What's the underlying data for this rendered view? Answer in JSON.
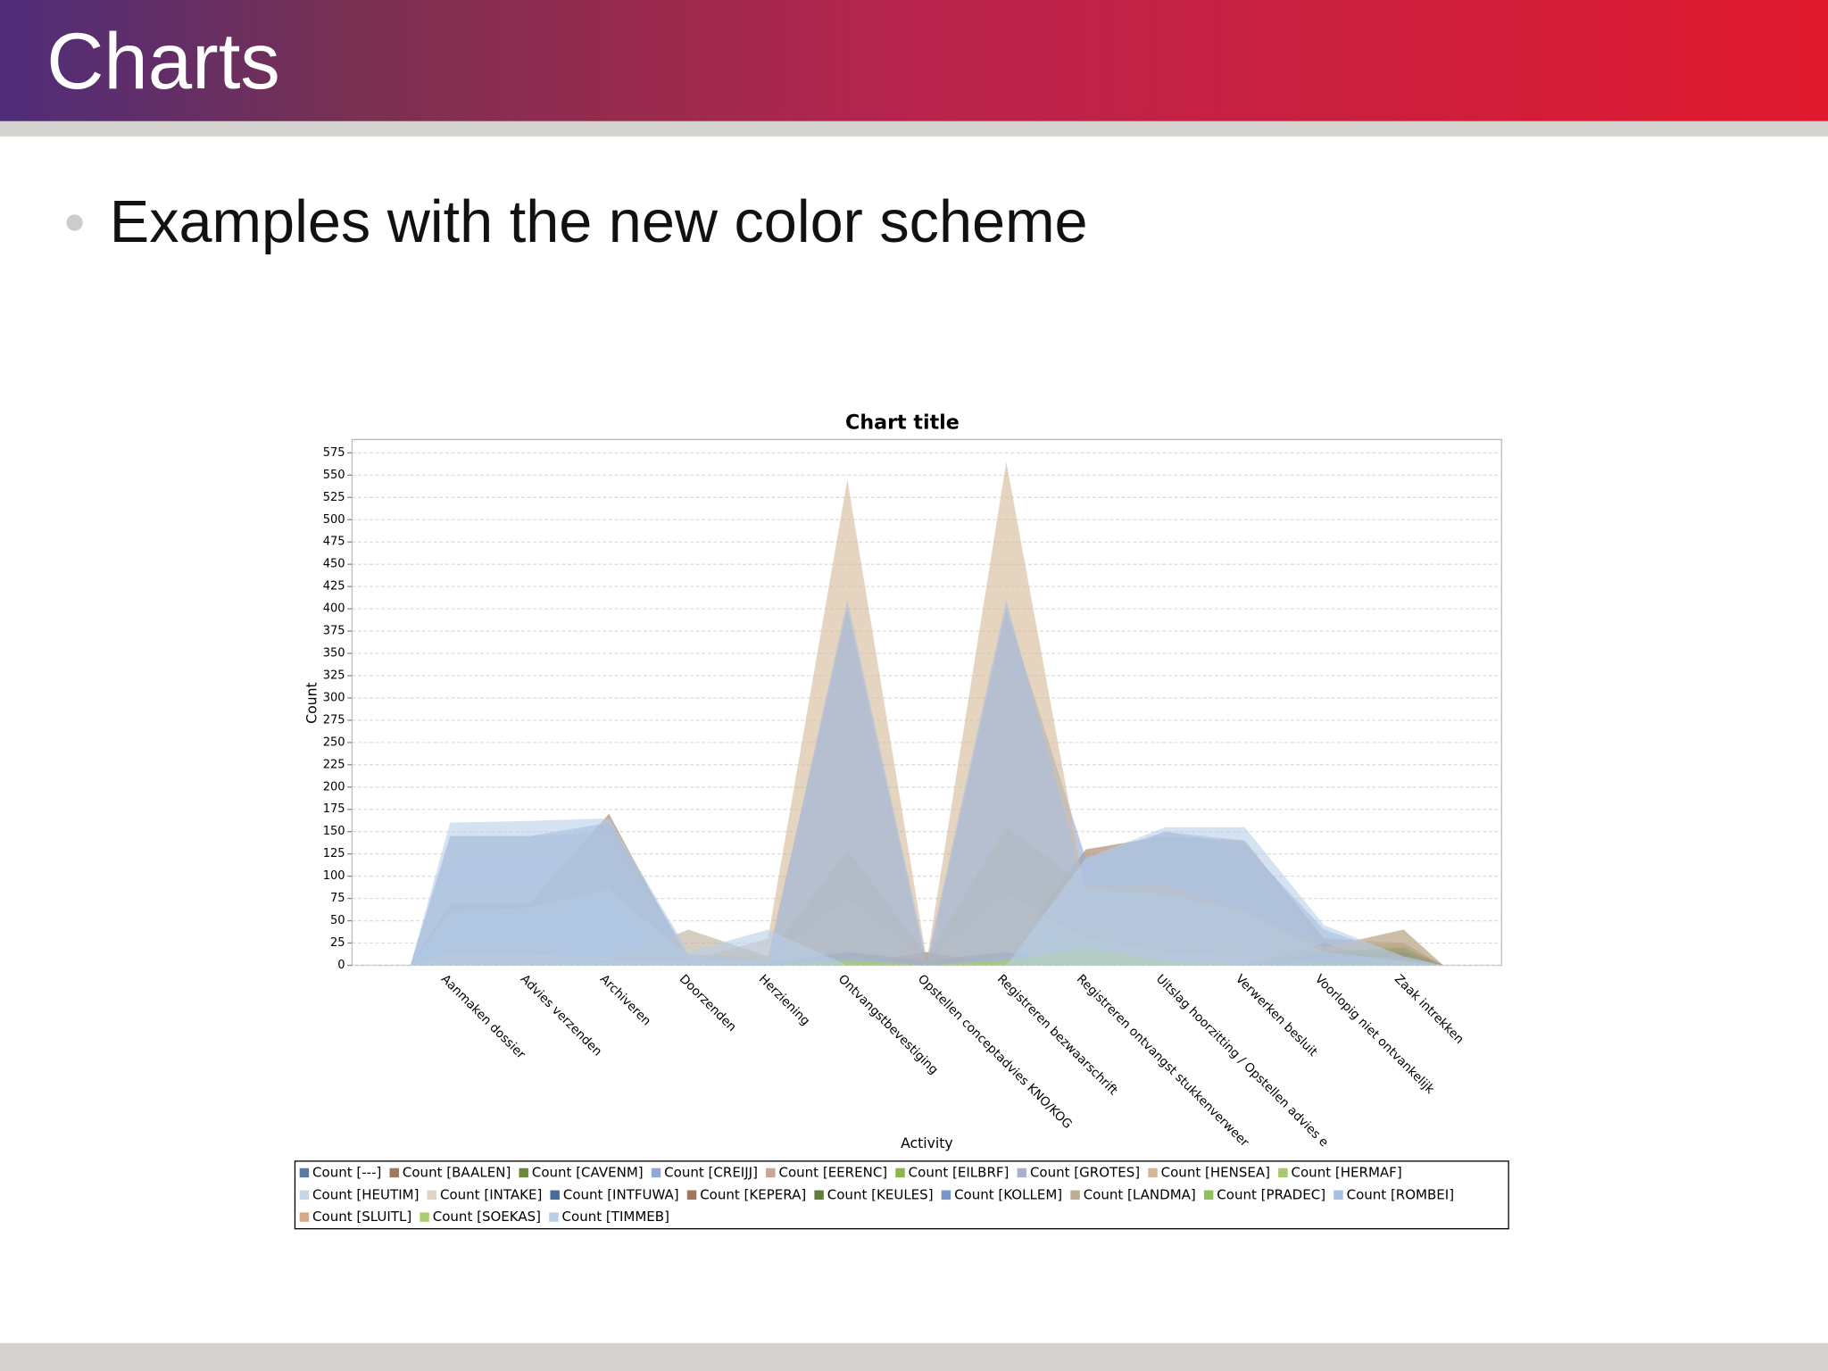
{
  "slide": {
    "title": "Charts",
    "bullet": "Examples with the new color scheme"
  },
  "chart_data": {
    "type": "area",
    "title": "Chart title",
    "x_label": "Activity",
    "y_label": "Count",
    "categories": [
      "Aanmaken dossier",
      "Advies verzenden",
      "Archiveren",
      "Doorzenden",
      "Herziening",
      "Ontvangstbevestiging",
      "Opstellen conceptadvies KNO/KOG",
      "Registreren bezwaarschrift",
      "Registreren ontvangst stukkenverweer",
      "Uitslag hoorzitting / Opstellen advies e",
      "Verwerken besluit",
      "Voorlopig niet ontvankelijk",
      "Zaak intrekken"
    ],
    "series": [
      {
        "name": "Count [---]",
        "color": "#5a7aa0",
        "values": [
          0,
          0,
          0,
          0,
          5,
          20,
          5,
          20,
          0,
          0,
          0,
          10,
          5
        ]
      },
      {
        "name": "Count [BAALEN]",
        "color": "#9c7a5e",
        "values": [
          70,
          70,
          170,
          5,
          5,
          10,
          10,
          10,
          130,
          145,
          140,
          30,
          25
        ]
      },
      {
        "name": "Count [CAVENM]",
        "color": "#6a8a3a",
        "values": [
          0,
          0,
          0,
          0,
          0,
          5,
          0,
          5,
          0,
          0,
          0,
          20,
          25
        ]
      },
      {
        "name": "Count [CREIJJ]",
        "color": "#8fa8d4",
        "values": [
          145,
          145,
          160,
          12,
          10,
          400,
          0,
          400,
          120,
          150,
          135,
          40,
          10
        ]
      },
      {
        "name": "Count [EERENC]",
        "color": "#c8a892",
        "values": [
          0,
          0,
          0,
          0,
          0,
          2,
          0,
          2,
          0,
          0,
          0,
          0,
          0
        ]
      },
      {
        "name": "Count [EILBRF]",
        "color": "#8ab84a",
        "values": [
          0,
          0,
          0,
          0,
          0,
          10,
          0,
          10,
          0,
          0,
          0,
          0,
          5
        ]
      },
      {
        "name": "Count [GROTES]",
        "color": "#a8b2d0",
        "values": [
          145,
          145,
          150,
          5,
          5,
          0,
          0,
          0,
          120,
          150,
          140,
          20,
          5
        ]
      },
      {
        "name": "Count [HENSEA]",
        "color": "#d4b896",
        "values": [
          10,
          10,
          5,
          5,
          30,
          545,
          5,
          565,
          80,
          70,
          50,
          20,
          40
        ]
      },
      {
        "name": "Count [HERMAF]",
        "color": "#a6c870",
        "values": [
          0,
          0,
          0,
          0,
          0,
          3,
          0,
          3,
          0,
          0,
          0,
          0,
          0
        ]
      },
      {
        "name": "Count [HEUTIM]",
        "color": "#c8d4e8",
        "values": [
          5,
          5,
          5,
          5,
          5,
          5,
          5,
          5,
          25,
          10,
          5,
          5,
          5
        ]
      },
      {
        "name": "Count [INTAKE]",
        "color": "#e0d4c4",
        "values": [
          12,
          12,
          8,
          5,
          5,
          75,
          5,
          80,
          30,
          15,
          10,
          5,
          5
        ]
      },
      {
        "name": "Count [INTFUWA]",
        "color": "#4a6a9a",
        "values": [
          0,
          0,
          0,
          0,
          2,
          15,
          5,
          15,
          0,
          0,
          0,
          12,
          15
        ]
      },
      {
        "name": "Count [KEPERA]",
        "color": "#a07860",
        "values": [
          0,
          0,
          0,
          0,
          0,
          0,
          15,
          0,
          0,
          0,
          0,
          25,
          0
        ]
      },
      {
        "name": "Count [KEULES]",
        "color": "#5f7f3a",
        "values": [
          0,
          0,
          0,
          0,
          0,
          5,
          0,
          5,
          0,
          0,
          0,
          15,
          20
        ]
      },
      {
        "name": "Count [KOLLEM]",
        "color": "#7a96c8",
        "values": [
          0,
          0,
          0,
          0,
          0,
          10,
          0,
          10,
          0,
          0,
          0,
          10,
          10
        ]
      },
      {
        "name": "Count [LANDMA]",
        "color": "#bcae95",
        "values": [
          10,
          10,
          5,
          40,
          10,
          130,
          10,
          155,
          90,
          90,
          60,
          20,
          40
        ]
      },
      {
        "name": "Count [PRADEC]",
        "color": "#8fbf5f",
        "values": [
          0,
          0,
          0,
          0,
          0,
          8,
          0,
          8,
          0,
          0,
          0,
          5,
          5
        ]
      },
      {
        "name": "Count [ROMBEI]",
        "color": "#a8c0e0",
        "values": [
          60,
          65,
          85,
          10,
          5,
          410,
          5,
          410,
          85,
          80,
          60,
          15,
          5
        ]
      },
      {
        "name": "Count [SLUITL]",
        "color": "#d4a888",
        "values": [
          0,
          0,
          0,
          0,
          0,
          2,
          0,
          2,
          0,
          0,
          0,
          0,
          0
        ]
      },
      {
        "name": "Count [SOEKAS]",
        "color": "#a8d070",
        "values": [
          0,
          0,
          0,
          0,
          0,
          5,
          0,
          5,
          20,
          5,
          0,
          0,
          0
        ]
      },
      {
        "name": "Count [TIMMEB]",
        "color": "#b8cfe8",
        "values": [
          160,
          162,
          165,
          15,
          40,
          0,
          0,
          0,
          120,
          155,
          155,
          45,
          10
        ]
      }
    ],
    "ylim": [
      0,
      590
    ],
    "yticks": [
      0,
      25,
      50,
      75,
      100,
      125,
      150,
      175,
      200,
      225,
      250,
      275,
      300,
      325,
      350,
      375,
      400,
      425,
      450,
      475,
      500,
      525,
      550,
      575
    ],
    "grid": true
  }
}
